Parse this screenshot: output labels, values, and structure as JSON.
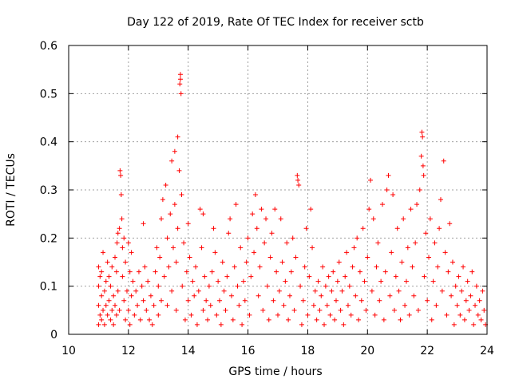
{
  "chart_data": {
    "type": "scatter",
    "title": "Day 122 of 2019, Rate Of TEC Index for receiver sctb",
    "xlabel": "GPS time / hours",
    "ylabel": "ROTI / TECUs",
    "xlim": [
      10,
      24
    ],
    "ylim": [
      0,
      0.6
    ],
    "x_ticks": [
      10,
      12,
      14,
      16,
      18,
      20,
      22,
      24
    ],
    "x_tick_labels": [
      "10",
      "12",
      "14",
      "16",
      "18",
      "20",
      "22",
      "24"
    ],
    "y_ticks": [
      0,
      0.1,
      0.2,
      0.3,
      0.4,
      0.5,
      0.6
    ],
    "y_tick_labels": [
      "0",
      "0.1",
      "0.2",
      "0.3",
      "0.4",
      "0.5",
      "0.6"
    ],
    "grid": true,
    "marker": "+",
    "color": "#ff0000",
    "series": [
      {
        "name": "ROTI",
        "points": [
          [
            11.0,
            0.02
          ],
          [
            11.0,
            0.06
          ],
          [
            11.0,
            0.1
          ],
          [
            11.0,
            0.14
          ],
          [
            11.05,
            0.04
          ],
          [
            11.05,
            0.12
          ],
          [
            11.1,
            0.03
          ],
          [
            11.1,
            0.08
          ],
          [
            11.1,
            0.13
          ],
          [
            11.15,
            0.05
          ],
          [
            11.15,
            0.17
          ],
          [
            11.2,
            0.02
          ],
          [
            11.2,
            0.09
          ],
          [
            11.25,
            0.06
          ],
          [
            11.25,
            0.11
          ],
          [
            11.3,
            0.04
          ],
          [
            11.3,
            0.15
          ],
          [
            11.35,
            0.07
          ],
          [
            11.35,
            0.12
          ],
          [
            11.4,
            0.03
          ],
          [
            11.4,
            0.1
          ],
          [
            11.45,
            0.05
          ],
          [
            11.45,
            0.14
          ],
          [
            11.5,
            0.02
          ],
          [
            11.5,
            0.08
          ],
          [
            11.55,
            0.06
          ],
          [
            11.55,
            0.16
          ],
          [
            11.6,
            0.04
          ],
          [
            11.6,
            0.13
          ],
          [
            11.62,
            0.19
          ],
          [
            11.65,
            0.09
          ],
          [
            11.65,
            0.21
          ],
          [
            11.7,
            0.05
          ],
          [
            11.7,
            0.22
          ],
          [
            11.72,
            0.34
          ],
          [
            11.74,
            0.33
          ],
          [
            11.76,
            0.29
          ],
          [
            11.78,
            0.24
          ],
          [
            11.8,
            0.18
          ],
          [
            11.8,
            0.12
          ],
          [
            11.85,
            0.07
          ],
          [
            11.85,
            0.2
          ],
          [
            11.9,
            0.03
          ],
          [
            11.9,
            0.15
          ],
          [
            11.95,
            0.09
          ],
          [
            12.0,
            0.05
          ],
          [
            12.0,
            0.19
          ],
          [
            12.05,
            0.13
          ],
          [
            12.05,
            0.02
          ],
          [
            12.1,
            0.17
          ],
          [
            12.1,
            0.08
          ],
          [
            12.15,
            0.11
          ],
          [
            12.2,
            0.04
          ],
          [
            12.25,
            0.09
          ],
          [
            12.3,
            0.06
          ],
          [
            12.35,
            0.13
          ],
          [
            12.4,
            0.03
          ],
          [
            12.45,
            0.1
          ],
          [
            12.5,
            0.07
          ],
          [
            12.5,
            0.23
          ],
          [
            12.55,
            0.14
          ],
          [
            12.6,
            0.05
          ],
          [
            12.65,
            0.11
          ],
          [
            12.7,
            0.03
          ],
          [
            12.75,
            0.08
          ],
          [
            12.8,
            0.02
          ],
          [
            12.85,
            0.06
          ],
          [
            12.9,
            0.13
          ],
          [
            12.95,
            0.18
          ],
          [
            13.0,
            0.04
          ],
          [
            13.0,
            0.1
          ],
          [
            13.05,
            0.16
          ],
          [
            13.1,
            0.07
          ],
          [
            13.1,
            0.24
          ],
          [
            13.15,
            0.28
          ],
          [
            13.2,
            0.12
          ],
          [
            13.25,
            0.31
          ],
          [
            13.3,
            0.06
          ],
          [
            13.3,
            0.2
          ],
          [
            13.35,
            0.14
          ],
          [
            13.4,
            0.25
          ],
          [
            13.45,
            0.36
          ],
          [
            13.45,
            0.09
          ],
          [
            13.5,
            0.18
          ],
          [
            13.55,
            0.38
          ],
          [
            13.55,
            0.27
          ],
          [
            13.6,
            0.05
          ],
          [
            13.6,
            0.15
          ],
          [
            13.65,
            0.41
          ],
          [
            13.65,
            0.22
          ],
          [
            13.7,
            0.34
          ],
          [
            13.72,
            0.52
          ],
          [
            13.74,
            0.54
          ],
          [
            13.74,
            0.53
          ],
          [
            13.76,
            0.5
          ],
          [
            13.78,
            0.29
          ],
          [
            13.8,
            0.1
          ],
          [
            13.85,
            0.19
          ],
          [
            13.9,
            0.03
          ],
          [
            13.95,
            0.13
          ],
          [
            14.0,
            0.07
          ],
          [
            14.0,
            0.23
          ],
          [
            14.05,
            0.16
          ],
          [
            14.1,
            0.04
          ],
          [
            14.15,
            0.11
          ],
          [
            14.2,
            0.08
          ],
          [
            14.25,
            0.14
          ],
          [
            14.3,
            0.02
          ],
          [
            14.35,
            0.09
          ],
          [
            14.4,
            0.26
          ],
          [
            14.45,
            0.18
          ],
          [
            14.5,
            0.25
          ],
          [
            14.5,
            0.05
          ],
          [
            14.55,
            0.12
          ],
          [
            14.6,
            0.07
          ],
          [
            14.65,
            0.03
          ],
          [
            14.7,
            0.1
          ],
          [
            14.75,
            0.06
          ],
          [
            14.8,
            0.13
          ],
          [
            14.85,
            0.22
          ],
          [
            14.9,
            0.17
          ],
          [
            14.95,
            0.04
          ],
          [
            15.0,
            0.11
          ],
          [
            15.05,
            0.07
          ],
          [
            15.1,
            0.02
          ],
          [
            15.15,
            0.15
          ],
          [
            15.2,
            0.09
          ],
          [
            15.25,
            0.05
          ],
          [
            15.3,
            0.12
          ],
          [
            15.35,
            0.21
          ],
          [
            15.4,
            0.24
          ],
          [
            15.45,
            0.08
          ],
          [
            15.5,
            0.03
          ],
          [
            15.55,
            0.14
          ],
          [
            15.6,
            0.27
          ],
          [
            15.65,
            0.1
          ],
          [
            15.7,
            0.06
          ],
          [
            15.75,
            0.18
          ],
          [
            15.8,
            0.02
          ],
          [
            15.85,
            0.11
          ],
          [
            15.9,
            0.07
          ],
          [
            15.95,
            0.15
          ],
          [
            16.0,
            0.2
          ],
          [
            16.05,
            0.04
          ],
          [
            16.1,
            0.12
          ],
          [
            16.15,
            0.25
          ],
          [
            16.2,
            0.17
          ],
          [
            16.25,
            0.29
          ],
          [
            16.3,
            0.22
          ],
          [
            16.35,
            0.08
          ],
          [
            16.4,
            0.14
          ],
          [
            16.45,
            0.26
          ],
          [
            16.5,
            0.05
          ],
          [
            16.55,
            0.19
          ],
          [
            16.6,
            0.24
          ],
          [
            16.65,
            0.1
          ],
          [
            16.7,
            0.03
          ],
          [
            16.75,
            0.16
          ],
          [
            16.8,
            0.21
          ],
          [
            16.85,
            0.07
          ],
          [
            16.9,
            0.26
          ],
          [
            16.95,
            0.13
          ],
          [
            17.0,
            0.04
          ],
          [
            17.05,
            0.09
          ],
          [
            17.1,
            0.24
          ],
          [
            17.15,
            0.15
          ],
          [
            17.2,
            0.06
          ],
          [
            17.25,
            0.11
          ],
          [
            17.3,
            0.19
          ],
          [
            17.35,
            0.03
          ],
          [
            17.4,
            0.08
          ],
          [
            17.45,
            0.13
          ],
          [
            17.5,
            0.2
          ],
          [
            17.55,
            0.05
          ],
          [
            17.6,
            0.16
          ],
          [
            17.65,
            0.33
          ],
          [
            17.67,
            0.32
          ],
          [
            17.7,
            0.31
          ],
          [
            17.75,
            0.1
          ],
          [
            17.8,
            0.02
          ],
          [
            17.85,
            0.07
          ],
          [
            17.9,
            0.14
          ],
          [
            17.95,
            0.22
          ],
          [
            18.0,
            0.04
          ],
          [
            18.05,
            0.12
          ],
          [
            18.1,
            0.26
          ],
          [
            18.15,
            0.18
          ],
          [
            18.2,
            0.06
          ],
          [
            18.25,
            0.09
          ],
          [
            18.3,
            0.03
          ],
          [
            18.35,
            0.11
          ],
          [
            18.4,
            0.05
          ],
          [
            18.45,
            0.08
          ],
          [
            18.5,
            0.14
          ],
          [
            18.55,
            0.02
          ],
          [
            18.6,
            0.1
          ],
          [
            18.65,
            0.06
          ],
          [
            18.7,
            0.12
          ],
          [
            18.75,
            0.04
          ],
          [
            18.8,
            0.09
          ],
          [
            18.85,
            0.13
          ],
          [
            18.9,
            0.03
          ],
          [
            18.95,
            0.07
          ],
          [
            19.0,
            0.11
          ],
          [
            19.05,
            0.15
          ],
          [
            19.1,
            0.05
          ],
          [
            19.15,
            0.09
          ],
          [
            19.2,
            0.02
          ],
          [
            19.25,
            0.12
          ],
          [
            19.3,
            0.17
          ],
          [
            19.35,
            0.06
          ],
          [
            19.4,
            0.1
          ],
          [
            19.45,
            0.04
          ],
          [
            19.5,
            0.14
          ],
          [
            19.55,
            0.18
          ],
          [
            19.6,
            0.08
          ],
          [
            19.65,
            0.2
          ],
          [
            19.7,
            0.03
          ],
          [
            19.75,
            0.13
          ],
          [
            19.8,
            0.07
          ],
          [
            19.85,
            0.22
          ],
          [
            19.9,
            0.11
          ],
          [
            19.95,
            0.05
          ],
          [
            20.0,
            0.16
          ],
          [
            20.05,
            0.26
          ],
          [
            20.1,
            0.32
          ],
          [
            20.15,
            0.09
          ],
          [
            20.2,
            0.24
          ],
          [
            20.25,
            0.04
          ],
          [
            20.3,
            0.14
          ],
          [
            20.35,
            0.19
          ],
          [
            20.4,
            0.07
          ],
          [
            20.45,
            0.11
          ],
          [
            20.5,
            0.27
          ],
          [
            20.55,
            0.03
          ],
          [
            20.6,
            0.13
          ],
          [
            20.65,
            0.3
          ],
          [
            20.7,
            0.33
          ],
          [
            20.75,
            0.08
          ],
          [
            20.8,
            0.17
          ],
          [
            20.85,
            0.29
          ],
          [
            20.9,
            0.05
          ],
          [
            20.95,
            0.12
          ],
          [
            21.0,
            0.22
          ],
          [
            21.05,
            0.09
          ],
          [
            21.1,
            0.03
          ],
          [
            21.15,
            0.15
          ],
          [
            21.2,
            0.24
          ],
          [
            21.25,
            0.06
          ],
          [
            21.3,
            0.11
          ],
          [
            21.35,
            0.18
          ],
          [
            21.4,
            0.04
          ],
          [
            21.45,
            0.26
          ],
          [
            21.5,
            0.14
          ],
          [
            21.55,
            0.08
          ],
          [
            21.6,
            0.19
          ],
          [
            21.65,
            0.27
          ],
          [
            21.7,
            0.05
          ],
          [
            21.75,
            0.3
          ],
          [
            21.8,
            0.37
          ],
          [
            21.82,
            0.42
          ],
          [
            21.84,
            0.41
          ],
          [
            21.86,
            0.35
          ],
          [
            21.88,
            0.33
          ],
          [
            21.9,
            0.12
          ],
          [
            21.95,
            0.21
          ],
          [
            22.0,
            0.07
          ],
          [
            22.05,
            0.16
          ],
          [
            22.1,
            0.24
          ],
          [
            22.15,
            0.03
          ],
          [
            22.2,
            0.11
          ],
          [
            22.25,
            0.19
          ],
          [
            22.3,
            0.06
          ],
          [
            22.35,
            0.14
          ],
          [
            22.4,
            0.22
          ],
          [
            22.45,
            0.28
          ],
          [
            22.5,
            0.09
          ],
          [
            22.55,
            0.36
          ],
          [
            22.6,
            0.17
          ],
          [
            22.65,
            0.04
          ],
          [
            22.7,
            0.13
          ],
          [
            22.75,
            0.23
          ],
          [
            22.8,
            0.08
          ],
          [
            22.85,
            0.15
          ],
          [
            22.9,
            0.02
          ],
          [
            22.95,
            0.1
          ],
          [
            23.0,
            0.06
          ],
          [
            23.05,
            0.12
          ],
          [
            23.1,
            0.04
          ],
          [
            23.15,
            0.09
          ],
          [
            23.2,
            0.14
          ],
          [
            23.25,
            0.03
          ],
          [
            23.3,
            0.07
          ],
          [
            23.35,
            0.11
          ],
          [
            23.4,
            0.05
          ],
          [
            23.45,
            0.08
          ],
          [
            23.5,
            0.13
          ],
          [
            23.55,
            0.02
          ],
          [
            23.6,
            0.06
          ],
          [
            23.65,
            0.1
          ],
          [
            23.7,
            0.04
          ],
          [
            23.75,
            0.07
          ],
          [
            23.8,
            0.03
          ],
          [
            23.85,
            0.09
          ],
          [
            23.9,
            0.05
          ],
          [
            23.95,
            0.02
          ]
        ]
      }
    ]
  }
}
